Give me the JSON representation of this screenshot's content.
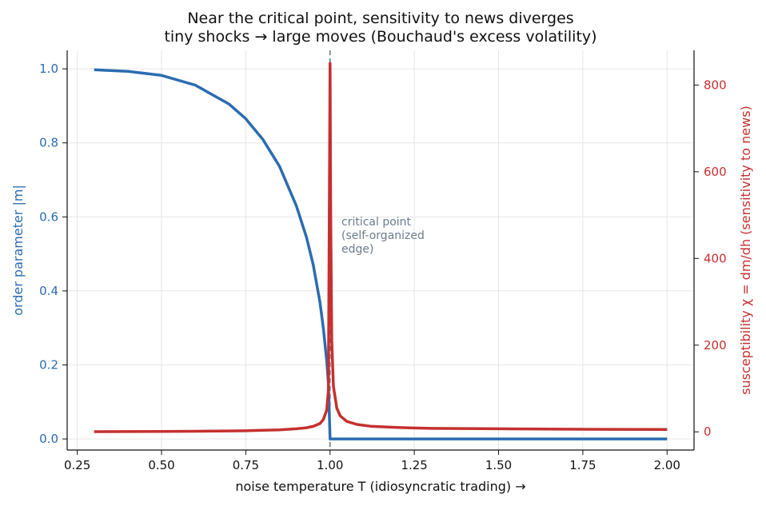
{
  "chart_data": {
    "type": "line",
    "title": "Near the critical point, sensitivity to news diverges",
    "subtitle": "tiny shocks → large moves (Bouchaud's excess volatility)",
    "xlabel": "noise temperature  T   (idiosyncratic trading) →",
    "ylabel_left": "order parameter  |m|",
    "ylabel_right": "susceptibility  χ = dm/dh   (sensitivity to news)",
    "xlim": [
      0.22,
      2.08
    ],
    "ylim_left": [
      -0.03,
      1.05
    ],
    "ylim_right": [
      -42,
      880
    ],
    "x_ticks": [
      "0.25",
      "0.50",
      "0.75",
      "1.00",
      "1.25",
      "1.50",
      "1.75",
      "2.00"
    ],
    "y_ticks_left": [
      "0.0",
      "0.2",
      "0.4",
      "0.6",
      "0.8",
      "1.0"
    ],
    "y_ticks_right": [
      "0",
      "200",
      "400",
      "600",
      "800"
    ],
    "grid": true,
    "critical_T": 1.0,
    "annotation": [
      "critical point",
      "(self-organized",
      "edge)"
    ],
    "colors": {
      "order": "#2b6cb0",
      "susceptibility": "#c53030",
      "critical_line": "#6b7b8f"
    },
    "series": [
      {
        "axis": "left",
        "x": [
          0.3,
          0.4,
          0.5,
          0.6,
          0.7,
          0.75,
          0.8,
          0.85,
          0.9,
          0.93,
          0.95,
          0.97,
          0.98,
          0.99,
          0.995,
          1.0,
          1.01,
          1.25,
          1.5,
          1.75,
          2.0
        ],
        "values": [
          0.9976,
          0.9932,
          0.9823,
          0.956,
          0.905,
          0.865,
          0.81,
          0.737,
          0.63,
          0.545,
          0.471,
          0.37,
          0.301,
          0.212,
          0.15,
          0.0,
          0.0,
          0.0,
          0.0,
          0.0,
          0.0
        ]
      },
      {
        "axis": "right",
        "x": [
          0.3,
          0.4,
          0.5,
          0.6,
          0.7,
          0.75,
          0.8,
          0.85,
          0.9,
          0.93,
          0.95,
          0.97,
          0.98,
          0.99,
          0.995,
          1.0,
          1.002,
          1.005,
          1.01,
          1.02,
          1.03,
          1.05,
          1.08,
          1.12,
          1.2,
          1.3,
          1.5,
          1.75,
          2.0
        ],
        "values": [
          0.4,
          0.6,
          0.9,
          1.3,
          2.0,
          2.5,
          3.5,
          4.7,
          7.0,
          9.5,
          12.5,
          19,
          28,
          50,
          95,
          850,
          500,
          210,
          105,
          55,
          37,
          24,
          17,
          13,
          10,
          8,
          7,
          6,
          5.5
        ]
      }
    ]
  }
}
